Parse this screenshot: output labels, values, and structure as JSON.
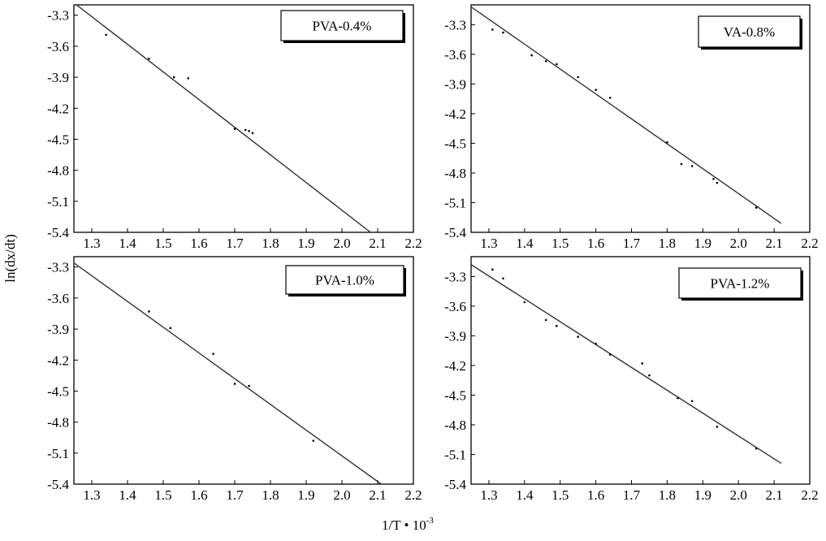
{
  "figure": {
    "ylabel": "ln(dx/dt)",
    "xlabel_base": "1/T • 10",
    "xlabel_exp": "-3"
  },
  "chart_data": [
    {
      "type": "scatter",
      "title": "",
      "legend_label": "PVA-0.4%",
      "legend_position": "top-right",
      "xlim": [
        1.25,
        2.2
      ],
      "ylim": [
        -5.4,
        -3.2
      ],
      "x_ticks": [
        "1.3",
        "1.4",
        "1.5",
        "1.6",
        "1.7",
        "1.8",
        "1.9",
        "2.0",
        "2.1",
        "2.2"
      ],
      "y_ticks": [
        "-3.3",
        "-3.6",
        "-3.9",
        "-4.2",
        "-4.5",
        "-4.8",
        "-5.1",
        "-5.4"
      ],
      "grid": false,
      "points": [
        {
          "x": 1.34,
          "y": -3.49
        },
        {
          "x": 1.46,
          "y": -3.72
        },
        {
          "x": 1.53,
          "y": -3.9
        },
        {
          "x": 1.57,
          "y": -3.91
        },
        {
          "x": 1.7,
          "y": -4.4
        },
        {
          "x": 1.73,
          "y": -4.41
        },
        {
          "x": 1.74,
          "y": -4.42
        },
        {
          "x": 1.75,
          "y": -4.44
        }
      ],
      "fit_line": [
        {
          "x": 1.25,
          "y": -3.18
        },
        {
          "x": 2.08,
          "y": -5.4
        }
      ]
    },
    {
      "type": "scatter",
      "title": "",
      "legend_label": "VA-0.8%",
      "legend_position": "top-right",
      "xlim": [
        1.25,
        2.2
      ],
      "ylim": [
        -5.4,
        -3.1
      ],
      "x_ticks": [
        "1.3",
        "1.4",
        "1.5",
        "1.6",
        "1.7",
        "1.8",
        "1.9",
        "2.0",
        "2.1",
        "2.2"
      ],
      "y_ticks": [
        "-3.3",
        "-3.6",
        "-3.9",
        "-4.2",
        "-4.5",
        "-4.8",
        "-5.1",
        "-5.4"
      ],
      "grid": false,
      "points": [
        {
          "x": 1.31,
          "y": -3.35
        },
        {
          "x": 1.34,
          "y": -3.38
        },
        {
          "x": 1.42,
          "y": -3.61
        },
        {
          "x": 1.46,
          "y": -3.67
        },
        {
          "x": 1.49,
          "y": -3.7
        },
        {
          "x": 1.55,
          "y": -3.83
        },
        {
          "x": 1.6,
          "y": -3.96
        },
        {
          "x": 1.64,
          "y": -4.04
        },
        {
          "x": 1.8,
          "y": -4.49
        },
        {
          "x": 1.84,
          "y": -4.71
        },
        {
          "x": 1.87,
          "y": -4.73
        },
        {
          "x": 1.93,
          "y": -4.86
        },
        {
          "x": 1.94,
          "y": -4.9
        },
        {
          "x": 2.05,
          "y": -5.15
        }
      ],
      "fit_line": [
        {
          "x": 1.25,
          "y": -3.12
        },
        {
          "x": 2.12,
          "y": -5.31
        }
      ]
    },
    {
      "type": "scatter",
      "title": "",
      "legend_label": "PVA-1.0%",
      "legend_position": "top-right",
      "xlim": [
        1.25,
        2.2
      ],
      "ylim": [
        -5.4,
        -3.2
      ],
      "x_ticks": [
        "1.3",
        "1.4",
        "1.5",
        "1.6",
        "1.7",
        "1.8",
        "1.9",
        "2.0",
        "2.1",
        "2.2"
      ],
      "y_ticks": [
        "-3.3",
        "-3.6",
        "-3.9",
        "-4.2",
        "-4.5",
        "-4.8",
        "-5.1",
        "-5.4"
      ],
      "grid": false,
      "points": [
        {
          "x": 1.46,
          "y": -3.73
        },
        {
          "x": 1.52,
          "y": -3.89
        },
        {
          "x": 1.64,
          "y": -4.14
        },
        {
          "x": 1.7,
          "y": -4.43
        },
        {
          "x": 1.74,
          "y": -4.45
        },
        {
          "x": 1.92,
          "y": -4.98
        }
      ],
      "fit_line": [
        {
          "x": 1.25,
          "y": -3.26
        },
        {
          "x": 2.11,
          "y": -5.4
        }
      ]
    },
    {
      "type": "scatter",
      "title": "",
      "legend_label": "PVA-1.2%",
      "legend_position": "top-right",
      "xlim": [
        1.25,
        2.2
      ],
      "ylim": [
        -5.4,
        -3.1
      ],
      "x_ticks": [
        "1.3",
        "1.4",
        "1.5",
        "1.6",
        "1.7",
        "1.8",
        "1.9",
        "2.0",
        "2.1",
        "2.2"
      ],
      "y_ticks": [
        "-3.3",
        "-3.6",
        "-3.9",
        "-4.2",
        "-4.5",
        "-4.8",
        "-5.1",
        "-5.4"
      ],
      "grid": false,
      "points": [
        {
          "x": 1.31,
          "y": -3.23
        },
        {
          "x": 1.34,
          "y": -3.32
        },
        {
          "x": 1.4,
          "y": -3.56
        },
        {
          "x": 1.46,
          "y": -3.74
        },
        {
          "x": 1.49,
          "y": -3.8
        },
        {
          "x": 1.55,
          "y": -3.91
        },
        {
          "x": 1.6,
          "y": -3.98
        },
        {
          "x": 1.64,
          "y": -4.09
        },
        {
          "x": 1.73,
          "y": -4.18
        },
        {
          "x": 1.75,
          "y": -4.3
        },
        {
          "x": 1.83,
          "y": -4.53
        },
        {
          "x": 1.87,
          "y": -4.56
        },
        {
          "x": 1.94,
          "y": -4.82
        },
        {
          "x": 2.05,
          "y": -5.04
        }
      ],
      "fit_line": [
        {
          "x": 1.25,
          "y": -3.18
        },
        {
          "x": 2.12,
          "y": -5.19
        }
      ]
    }
  ]
}
